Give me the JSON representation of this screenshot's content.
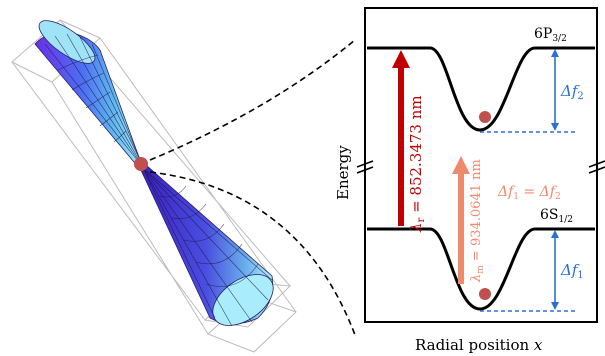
{
  "upper_state": {
    "label_main": "6P",
    "label_sub": "3/2",
    "delta_f_main": "Δf",
    "delta_f_sub": "2"
  },
  "lower_state": {
    "label_main": "6S",
    "label_sub": "1/2",
    "delta_f_main": "Δf",
    "delta_f_sub": "1"
  },
  "resonant_transition": {
    "lambda_symbol": "λ",
    "lambda_sub": "r",
    "value_text": " = 852.3473 nm",
    "color": "#c00000"
  },
  "magic_transition": {
    "lambda_symbol": "λ",
    "lambda_sub": "m",
    "value_text": " = 934.0641 nm",
    "color": "#f08a6c"
  },
  "equality_label": {
    "part1": "Δf",
    "sub1": "1",
    "part2": " = Δf",
    "sub2": "2",
    "color": "#f08a6c"
  },
  "axes": {
    "y_label": "Energy",
    "x_label": "Radial position ",
    "x_var": "x"
  },
  "colors": {
    "delta_arrow": "#2b6fd6",
    "atom": "#c0504d",
    "cone_top": "#9fe3f7",
    "cone_bottom": "#3b2cc9"
  }
}
